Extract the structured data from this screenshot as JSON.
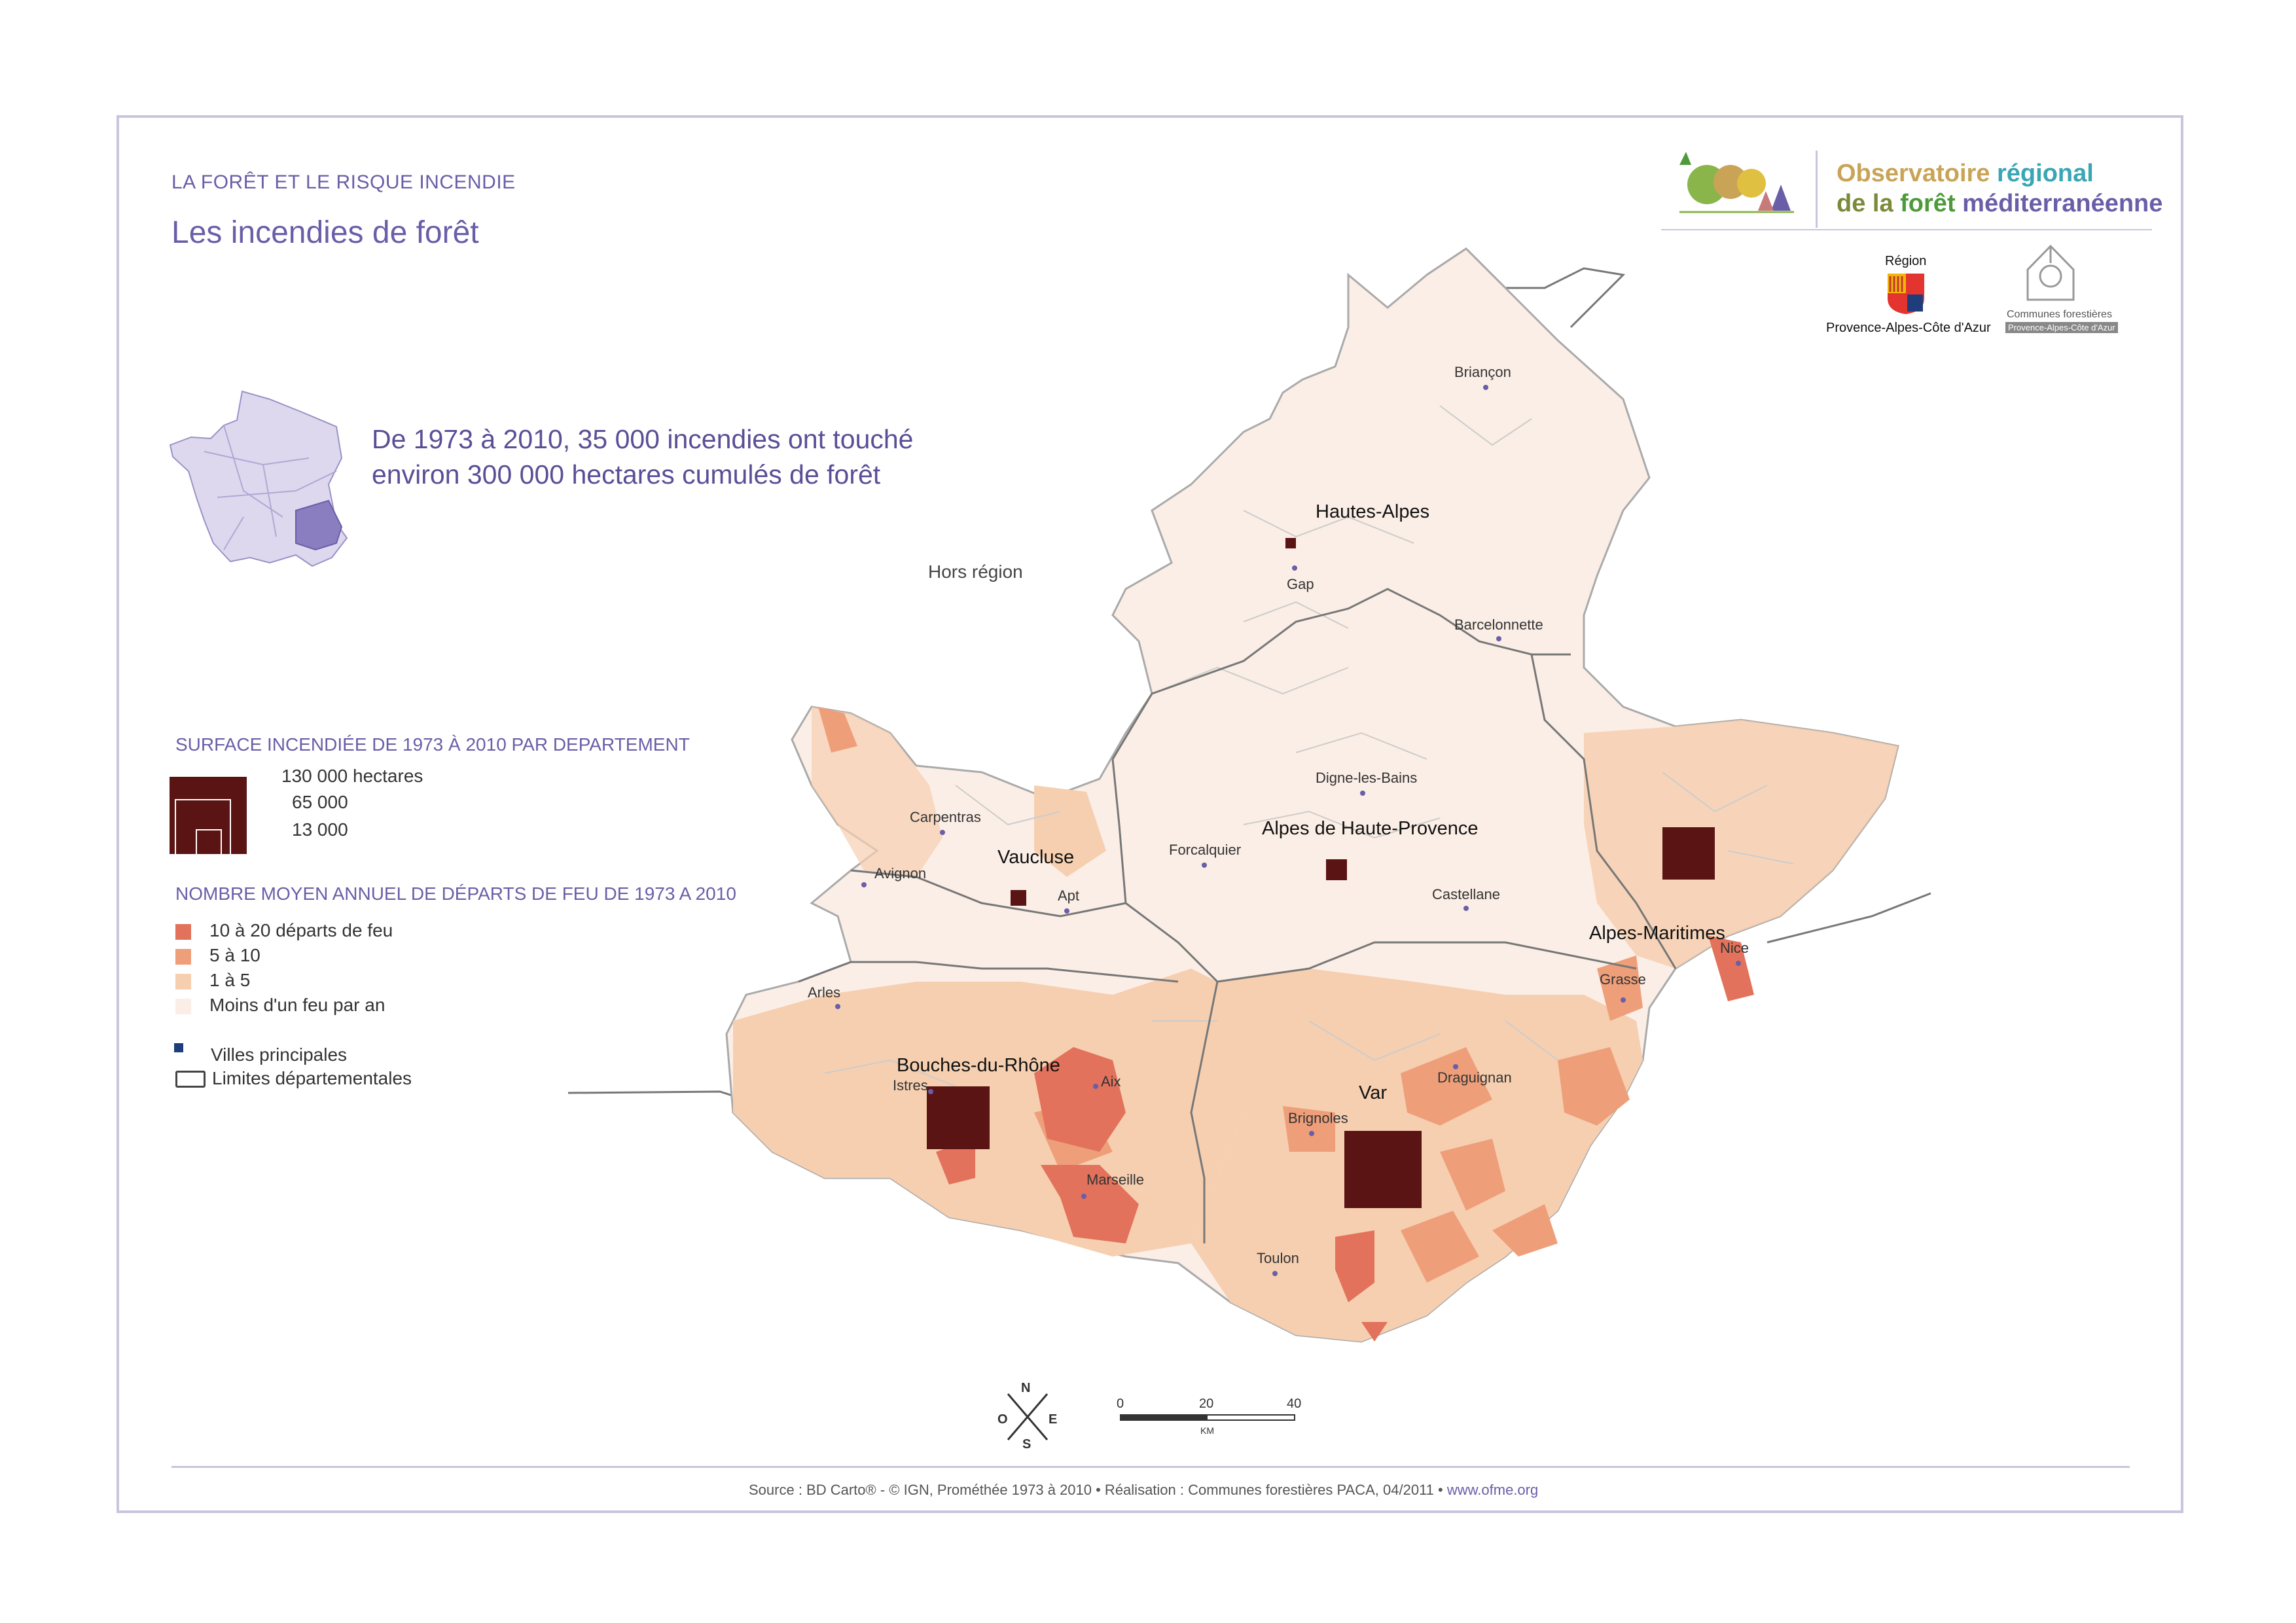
{
  "header": {
    "kicker": "LA FORÊT ET LE RISQUE INCENDIE",
    "title": "Les incendies de forêt",
    "headline_1": "De 1973 à 2010, 35 000 incendies ont touché",
    "headline_2": "environ 300 000 hectares cumulés de forêt"
  },
  "logos": {
    "observatoire_1a": "Observatoire ",
    "observatoire_1b": "régional",
    "observatoire_2a": "de la ",
    "observatoire_2b": "forêt",
    "observatoire_2c": " méditerranéenne",
    "region_top": "Région",
    "region_bottom": "Provence-Alpes-Côte d'Azur",
    "communes_1": "Communes forestières",
    "communes_2": "Provence-Alpes-Côte d'Azur"
  },
  "legend": {
    "surface_title": "SURFACE INCENDIÉE DE 1973 À 2010 PAR DEPARTEMENT",
    "surface_values": [
      "130 000 hectares",
      "65 000",
      "13 000"
    ],
    "departs_title": "NOMBRE MOYEN ANNUEL DE DÉPARTS DE FEU DE 1973 A 2010",
    "classes": [
      {
        "label": "10 à 20 départs de feu",
        "color": "#e2725b"
      },
      {
        "label": "5 à 10",
        "color": "#ee9f7a"
      },
      {
        "label": "1 à 5",
        "color": "#f6cfb0"
      },
      {
        "label": "Moins d'un feu par an",
        "color": "#fbeee6"
      }
    ],
    "villes": "Villes principales",
    "limites": "Limites départementales",
    "square_color": "#5a1414",
    "city_color": "#1f3d7a"
  },
  "map": {
    "hors_region": "Hors région",
    "departments": [
      "Hautes-Alpes",
      "Alpes de Haute-Provence",
      "Vaucluse",
      "Alpes-Maritimes",
      "Bouches-du-Rhône",
      "Var"
    ],
    "cities": [
      "Briançon",
      "Gap",
      "Barcelonnette",
      "Digne-les-Bains",
      "Carpentras",
      "Forcalquier",
      "Avignon",
      "Apt",
      "Castellane",
      "Grasse",
      "Nice",
      "Arles",
      "Istres",
      "Aix",
      "Draguignan",
      "Brignoles",
      "Marseille",
      "Toulon"
    ],
    "compass": {
      "n": "N",
      "s": "S",
      "e": "E",
      "o": "O"
    },
    "scale": {
      "labels": [
        "0",
        "20",
        "40"
      ],
      "unit": "KM"
    }
  },
  "footer": {
    "source": "Source : BD Carto® - © IGN, Prométhée 1973 à 2010 • Réalisation : Communes forestières PACA, 04/2011 • ",
    "site": "www.ofme.org"
  }
}
